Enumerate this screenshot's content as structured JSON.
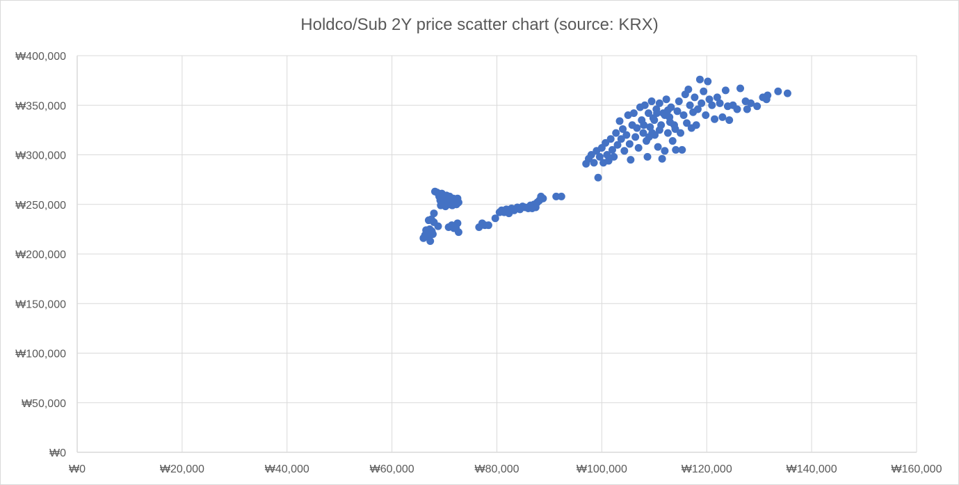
{
  "colors": {
    "point": "#4472c4",
    "grid": "#d9d9d9",
    "text": "#595959"
  },
  "chart_data": {
    "type": "scatter",
    "title": "Holdco/Sub 2Y price scatter chart (source: KRX)",
    "xlabel": "",
    "ylabel": "",
    "xlim": [
      0,
      160000
    ],
    "ylim": [
      0,
      400000
    ],
    "grid": true,
    "legend": "none",
    "x_ticks": [
      0,
      20000,
      40000,
      60000,
      80000,
      100000,
      120000,
      140000,
      160000
    ],
    "y_ticks": [
      0,
      50000,
      100000,
      150000,
      200000,
      250000,
      300000,
      350000,
      400000
    ],
    "x_tick_labels": [
      "₩0",
      "₩20,000",
      "₩40,000",
      "₩60,000",
      "₩80,000",
      "₩100,000",
      "₩120,000",
      "₩140,000",
      "₩160,000"
    ],
    "y_tick_labels": [
      "₩0",
      "₩50,000",
      "₩100,000",
      "₩150,000",
      "₩200,000",
      "₩250,000",
      "₩300,000",
      "₩350,000",
      "₩400,000"
    ],
    "series": [
      {
        "points": [
          [
            66000,
            216000
          ],
          [
            66300,
            219000
          ],
          [
            66500,
            224000
          ],
          [
            66800,
            221000
          ],
          [
            67000,
            217000
          ],
          [
            67200,
            225000
          ],
          [
            67300,
            213000
          ],
          [
            67600,
            223000
          ],
          [
            67800,
            220000
          ],
          [
            67000,
            234000
          ],
          [
            67500,
            235000
          ],
          [
            68000,
            232000
          ],
          [
            68000,
            241000
          ],
          [
            68200,
            263000
          ],
          [
            68600,
            262000
          ],
          [
            69000,
            258000
          ],
          [
            69200,
            254000
          ],
          [
            69300,
            249000
          ],
          [
            69500,
            261000
          ],
          [
            69800,
            256000
          ],
          [
            70000,
            252000
          ],
          [
            70200,
            248000
          ],
          [
            70400,
            259000
          ],
          [
            70600,
            254000
          ],
          [
            70800,
            250000
          ],
          [
            71000,
            258000
          ],
          [
            71200,
            253000
          ],
          [
            71500,
            249000
          ],
          [
            71700,
            256000
          ],
          [
            72000,
            252000
          ],
          [
            72300,
            250000
          ],
          [
            72500,
            256000
          ],
          [
            72700,
            252000
          ],
          [
            68800,
            228000
          ],
          [
            70800,
            227000
          ],
          [
            71400,
            229000
          ],
          [
            72200,
            226000
          ],
          [
            72500,
            231000
          ],
          [
            72700,
            222000
          ],
          [
            71800,
            226000
          ],
          [
            76600,
            227000
          ],
          [
            77200,
            231000
          ],
          [
            77700,
            229000
          ],
          [
            78400,
            229000
          ],
          [
            79700,
            236000
          ],
          [
            80500,
            242000
          ],
          [
            80900,
            244000
          ],
          [
            81400,
            242000
          ],
          [
            81800,
            245000
          ],
          [
            82300,
            241000
          ],
          [
            82800,
            246000
          ],
          [
            83300,
            244000
          ],
          [
            83900,
            247000
          ],
          [
            84400,
            245000
          ],
          [
            84900,
            248000
          ],
          [
            85400,
            247000
          ],
          [
            86000,
            246000
          ],
          [
            86400,
            249000
          ],
          [
            86700,
            246000
          ],
          [
            87100,
            250000
          ],
          [
            87400,
            247000
          ],
          [
            87700,
            252000
          ],
          [
            88100,
            254000
          ],
          [
            88400,
            258000
          ],
          [
            88800,
            256000
          ],
          [
            91300,
            258000
          ],
          [
            92300,
            258000
          ],
          [
            97000,
            291000
          ],
          [
            97500,
            296000
          ],
          [
            98000,
            300000
          ],
          [
            98500,
            292000
          ],
          [
            99000,
            304000
          ],
          [
            99300,
            277000
          ],
          [
            99600,
            298000
          ],
          [
            100000,
            307000
          ],
          [
            100300,
            292000
          ],
          [
            100700,
            312000
          ],
          [
            101000,
            300000
          ],
          [
            101300,
            294000
          ],
          [
            101700,
            316000
          ],
          [
            102000,
            305000
          ],
          [
            102300,
            298000
          ],
          [
            102700,
            322000
          ],
          [
            103000,
            310000
          ],
          [
            103400,
            334000
          ],
          [
            103700,
            316000
          ],
          [
            104000,
            326000
          ],
          [
            104300,
            304000
          ],
          [
            104700,
            320000
          ],
          [
            105000,
            340000
          ],
          [
            105300,
            311000
          ],
          [
            105500,
            295000
          ],
          [
            105800,
            330000
          ],
          [
            106100,
            342000
          ],
          [
            106400,
            318000
          ],
          [
            106700,
            327000
          ],
          [
            107000,
            307000
          ],
          [
            107300,
            348000
          ],
          [
            107600,
            335000
          ],
          [
            107900,
            322000
          ],
          [
            108200,
            350000
          ],
          [
            108500,
            314000
          ],
          [
            108700,
            298000
          ],
          [
            108900,
            342000
          ],
          [
            109200,
            328000
          ],
          [
            109500,
            354000
          ],
          [
            109800,
            337000
          ],
          [
            110100,
            320000
          ],
          [
            110400,
            346000
          ],
          [
            110700,
            308000
          ],
          [
            111000,
            352000
          ],
          [
            111300,
            330000
          ],
          [
            111500,
            296000
          ],
          [
            111700,
            342000
          ],
          [
            112000,
            304000
          ],
          [
            112300,
            356000
          ],
          [
            112600,
            322000
          ],
          [
            112900,
            338000
          ],
          [
            113200,
            348000
          ],
          [
            113500,
            314000
          ],
          [
            113800,
            330000
          ],
          [
            114100,
            305000
          ],
          [
            114400,
            344000
          ],
          [
            114700,
            354000
          ],
          [
            115000,
            322000
          ],
          [
            115300,
            305000
          ],
          [
            115600,
            340000
          ],
          [
            115900,
            361000
          ],
          [
            116200,
            332000
          ],
          [
            116500,
            366000
          ],
          [
            116800,
            350000
          ],
          [
            117100,
            327000
          ],
          [
            117400,
            343000
          ],
          [
            117700,
            358000
          ],
          [
            118000,
            330000
          ],
          [
            118300,
            346000
          ],
          [
            118700,
            376000
          ],
          [
            119000,
            352000
          ],
          [
            119400,
            364000
          ],
          [
            119800,
            340000
          ],
          [
            120200,
            374000
          ],
          [
            120500,
            356000
          ],
          [
            121000,
            350000
          ],
          [
            121500,
            336000
          ],
          [
            122000,
            358000
          ],
          [
            122500,
            352000
          ],
          [
            123000,
            338000
          ],
          [
            123600,
            365000
          ],
          [
            124000,
            349000
          ],
          [
            124300,
            335000
          ],
          [
            125000,
            350000
          ],
          [
            125800,
            346000
          ],
          [
            126400,
            367000
          ],
          [
            127400,
            354000
          ],
          [
            127700,
            346000
          ],
          [
            128400,
            352000
          ],
          [
            129600,
            349000
          ],
          [
            130700,
            358000
          ],
          [
            131400,
            356000
          ],
          [
            131600,
            360000
          ],
          [
            133600,
            364000
          ],
          [
            135400,
            362000
          ],
          [
            108000,
            330000
          ],
          [
            109000,
            318000
          ],
          [
            110000,
            335000
          ],
          [
            111000,
            325000
          ],
          [
            112000,
            340000
          ],
          [
            113000,
            333000
          ],
          [
            114000,
            326000
          ],
          [
            110500,
            342000
          ],
          [
            109600,
            322000
          ],
          [
            112600,
            345000
          ]
        ]
      }
    ]
  }
}
